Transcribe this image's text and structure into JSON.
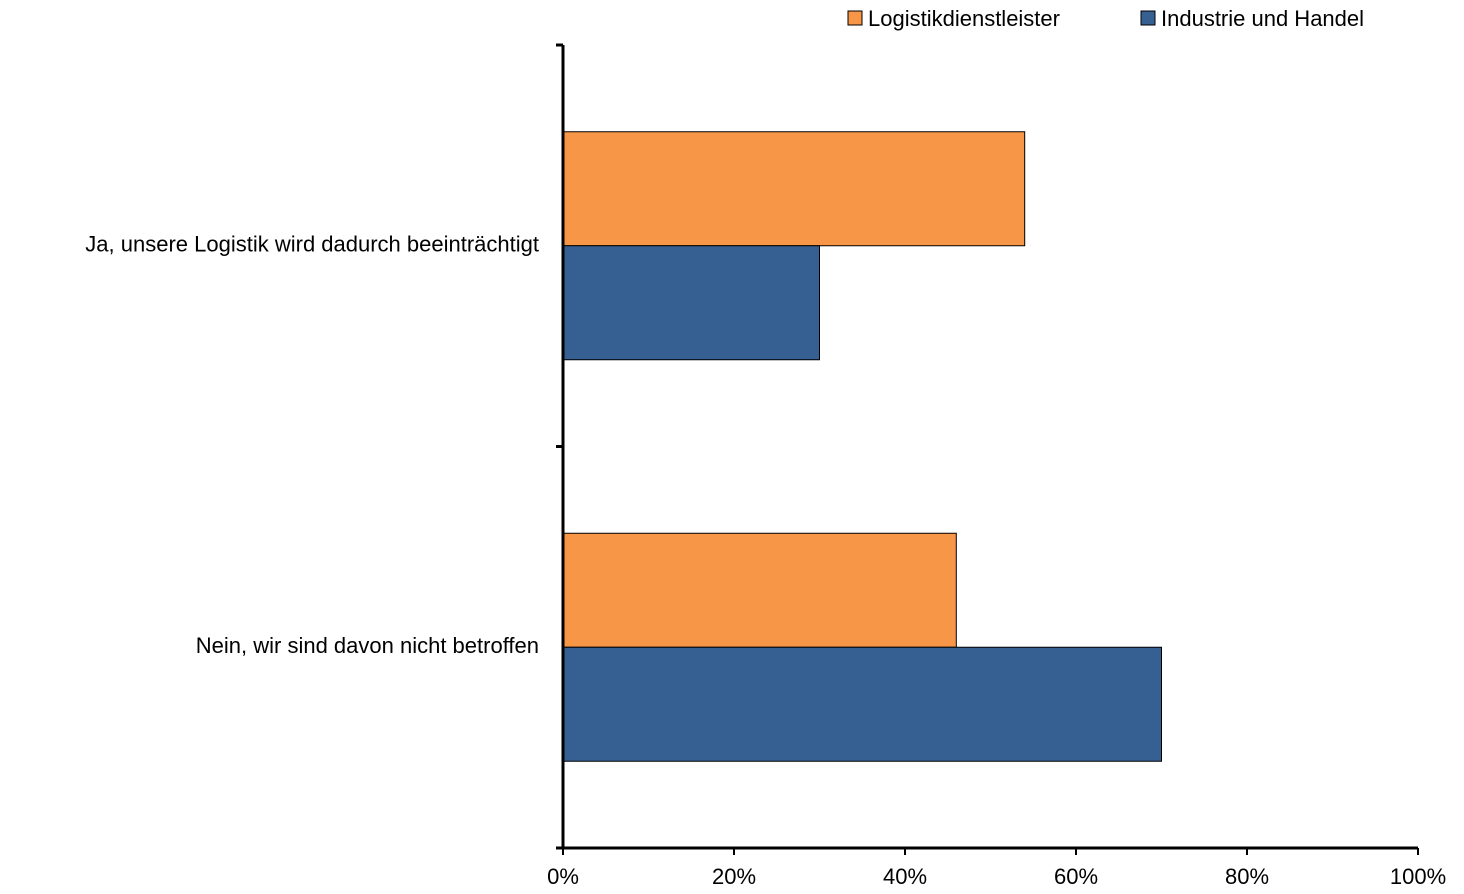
{
  "chart_data": {
    "type": "bar",
    "orientation": "horizontal",
    "title": "",
    "xlabel": "",
    "ylabel": "",
    "categories": [
      "Ja, unsere Logistik wird dadurch beeinträchtigt",
      "Nein, wir sind davon nicht betroffen"
    ],
    "series": [
      {
        "name": "Logistikdienstleister",
        "color": "#f79646",
        "values": [
          54,
          46
        ]
      },
      {
        "name": "Industrie und Handel",
        "color": "#366092",
        "values": [
          30,
          70
        ]
      }
    ],
    "xlim": [
      0,
      100
    ],
    "xticks": [
      0,
      20,
      40,
      60,
      80,
      100
    ],
    "xtick_labels": [
      "0%",
      "20%",
      "40%",
      "60%",
      "80%",
      "100%"
    ],
    "grid": false,
    "legend_position": "top-right"
  }
}
